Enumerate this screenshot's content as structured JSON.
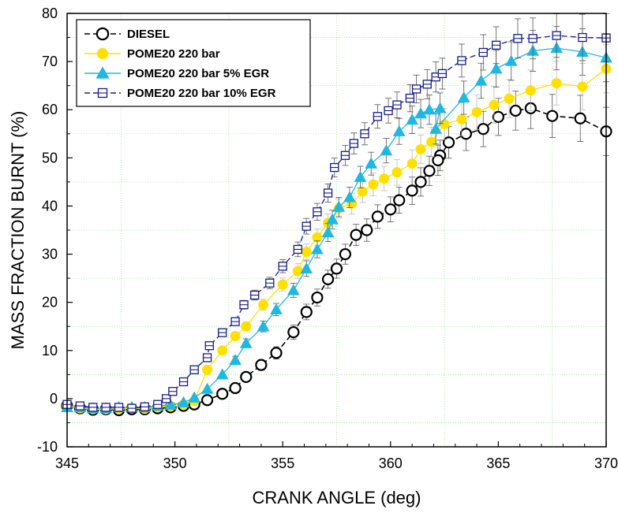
{
  "chart_data": {
    "type": "line",
    "title": "",
    "xlabel": "CRANK ANGLE (deg)",
    "ylabel": "MASS FRACTION BURNT (%)",
    "xlim": [
      345,
      370
    ],
    "ylim": [
      -10,
      80
    ],
    "xticks": [
      "345",
      "350",
      "355",
      "360",
      "365",
      "370"
    ],
    "yticks": [
      "-10",
      "0",
      "10",
      "20",
      "30",
      "40",
      "50",
      "60",
      "70",
      "80"
    ],
    "legend_position": "top-left",
    "grid": "dotted green minor lines",
    "series": [
      {
        "name": "DIESEL",
        "color": "#000000",
        "marker": "open-circle",
        "line": "dash",
        "points": [
          [
            345,
            -1.5
          ],
          [
            345.6,
            -2
          ],
          [
            346.2,
            -2.3
          ],
          [
            346.8,
            -2.2
          ],
          [
            347.4,
            -2.4
          ],
          [
            348,
            -2.2
          ],
          [
            348.6,
            -2.2
          ],
          [
            349.2,
            -2.0
          ],
          [
            349.8,
            -1.8
          ],
          [
            350.4,
            -1.5
          ],
          [
            350.9,
            -1.2
          ],
          [
            351.5,
            -0.3
          ],
          [
            352.2,
            1.0
          ],
          [
            352.8,
            2.2
          ],
          [
            353.3,
            4.5
          ],
          [
            354.0,
            7.0
          ],
          [
            354.7,
            9.5
          ],
          [
            355.5,
            13.8
          ],
          [
            356.1,
            18
          ],
          [
            356.6,
            21
          ],
          [
            357.1,
            24.8
          ],
          [
            357.5,
            27
          ],
          [
            357.9,
            30
          ],
          [
            358.4,
            34
          ],
          [
            358.9,
            35
          ],
          [
            359.4,
            37.8
          ],
          [
            360,
            39.3
          ],
          [
            360.4,
            41.2
          ],
          [
            361,
            43.2
          ],
          [
            361.4,
            45
          ],
          [
            361.8,
            47.3
          ],
          [
            362.3,
            50.5
          ],
          [
            362.2,
            49.5
          ],
          [
            362.7,
            53.2
          ],
          [
            363.5,
            55
          ],
          [
            364.3,
            56
          ],
          [
            365,
            58.5
          ],
          [
            365.8,
            59.8
          ],
          [
            366.5,
            60.3
          ],
          [
            367.5,
            58.7
          ],
          [
            368.8,
            58.2
          ],
          [
            370,
            55.5
          ]
        ]
      },
      {
        "name": "POME20 220 bar",
        "color": "#FFE000",
        "marker": "filled-circle",
        "line": "solid",
        "points": [
          [
            345,
            -1.5
          ],
          [
            345.6,
            -2
          ],
          [
            346.2,
            -2.2
          ],
          [
            346.8,
            -2.2
          ],
          [
            347.4,
            -2.1
          ],
          [
            348,
            -2.0
          ],
          [
            348.6,
            -2.1
          ],
          [
            349.2,
            -1.8
          ],
          [
            349.8,
            -1.6
          ],
          [
            350.4,
            -1.2
          ],
          [
            350.9,
            -0.5
          ],
          [
            351.5,
            6
          ],
          [
            352.2,
            10
          ],
          [
            352.8,
            13
          ],
          [
            353.3,
            15
          ],
          [
            354.1,
            19.5
          ],
          [
            355.0,
            23.7
          ],
          [
            355.7,
            26.5
          ],
          [
            356.1,
            30.5
          ],
          [
            356.6,
            33.5
          ],
          [
            357.1,
            36.5
          ],
          [
            357.6,
            39.5
          ],
          [
            358.2,
            40.5
          ],
          [
            358.7,
            43
          ],
          [
            359.2,
            44.5
          ],
          [
            359.7,
            45.7
          ],
          [
            360.3,
            47
          ],
          [
            361,
            48.8
          ],
          [
            361.4,
            51.8
          ],
          [
            361.9,
            53.3
          ],
          [
            362.5,
            57
          ],
          [
            363.3,
            58
          ],
          [
            364,
            59.5
          ],
          [
            364.8,
            61
          ],
          [
            365.5,
            62.3
          ],
          [
            366.5,
            64
          ],
          [
            367.7,
            65.5
          ],
          [
            368.9,
            64.8
          ],
          [
            370,
            68.5
          ]
        ]
      },
      {
        "name": "POME20 220 bar 5% EGR",
        "color": "#1EB8E0",
        "marker": "filled-triangle",
        "line": "solid",
        "points": [
          [
            345,
            -1.8
          ],
          [
            345.6,
            -1.8
          ],
          [
            346.2,
            -2.0
          ],
          [
            346.8,
            -2.0
          ],
          [
            347.4,
            -1.8
          ],
          [
            348,
            -1.8
          ],
          [
            348.6,
            -1.8
          ],
          [
            349.2,
            -1.5
          ],
          [
            349.8,
            -1.3
          ],
          [
            350.4,
            -0.8
          ],
          [
            350.9,
            0.2
          ],
          [
            351.5,
            2.0
          ],
          [
            352.2,
            5.0
          ],
          [
            352.8,
            8.0
          ],
          [
            353.3,
            11.5
          ],
          [
            354.1,
            15
          ],
          [
            354.7,
            18.5
          ],
          [
            355.5,
            22.5
          ],
          [
            356.1,
            27
          ],
          [
            356.6,
            31
          ],
          [
            357.1,
            34.5
          ],
          [
            357.3,
            37.2
          ],
          [
            357.6,
            39.8
          ],
          [
            358.1,
            41.8
          ],
          [
            358.6,
            46
          ],
          [
            359.1,
            48.8
          ],
          [
            359.8,
            51.5
          ],
          [
            360.4,
            55.5
          ],
          [
            361,
            57.9
          ],
          [
            361.4,
            59.2
          ],
          [
            361.8,
            60
          ],
          [
            362.3,
            60.3
          ],
          [
            362.1,
            56
          ],
          [
            363.4,
            62.5
          ],
          [
            364.2,
            66
          ],
          [
            364.9,
            68.5
          ],
          [
            365.6,
            70.1
          ],
          [
            366.6,
            72.2
          ],
          [
            367.7,
            72.8
          ],
          [
            368.9,
            72.0
          ],
          [
            370,
            70.8
          ]
        ]
      },
      {
        "name": "POME20 220 bar 10% EGR",
        "color": "#1A1A8C",
        "marker": "open-square-dot",
        "line": "dash",
        "points": [
          [
            345,
            -1.2
          ],
          [
            345.6,
            -1.5
          ],
          [
            346.2,
            -1.8
          ],
          [
            346.8,
            -1.8
          ],
          [
            347.4,
            -1.8
          ],
          [
            348,
            -2.0
          ],
          [
            348.6,
            -1.7
          ],
          [
            349.2,
            -1.2
          ],
          [
            349.6,
            0.0
          ],
          [
            349.9,
            1.5
          ],
          [
            350.4,
            3.5
          ],
          [
            350.9,
            6
          ],
          [
            351.5,
            8.5
          ],
          [
            351.6,
            11
          ],
          [
            352.2,
            13.7
          ],
          [
            352.8,
            16
          ],
          [
            353.2,
            19.5
          ],
          [
            353.7,
            21.5
          ],
          [
            354.4,
            24
          ],
          [
            355.0,
            27.5
          ],
          [
            355.7,
            31
          ],
          [
            356.1,
            35.8
          ],
          [
            356.6,
            38.8
          ],
          [
            357.1,
            42.7
          ],
          [
            357.4,
            48
          ],
          [
            357.9,
            50.5
          ],
          [
            358.3,
            53
          ],
          [
            358.8,
            55
          ],
          [
            359.4,
            58.6
          ],
          [
            359.9,
            59.8
          ],
          [
            360.3,
            61
          ],
          [
            360.9,
            62.4
          ],
          [
            361.2,
            64.3
          ],
          [
            361.7,
            65.3
          ],
          [
            362.1,
            66.8
          ],
          [
            362.4,
            67.5
          ],
          [
            363.3,
            70.2
          ],
          [
            364.3,
            71.9
          ],
          [
            364.9,
            73.4
          ],
          [
            365.9,
            74.8
          ],
          [
            366.6,
            74.8
          ],
          [
            367.7,
            75.4
          ],
          [
            368.9,
            75
          ],
          [
            370,
            74.9
          ]
        ]
      }
    ]
  }
}
